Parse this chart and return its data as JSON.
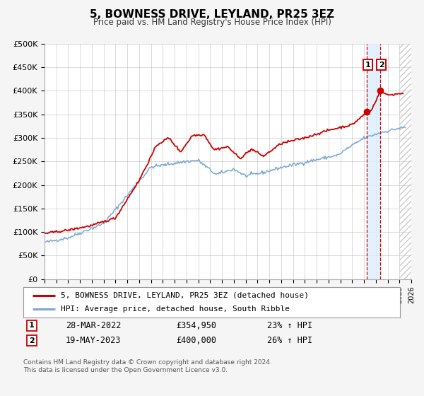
{
  "title": "5, BOWNESS DRIVE, LEYLAND, PR25 3EZ",
  "subtitle": "Price paid vs. HM Land Registry's House Price Index (HPI)",
  "legend_line1": "5, BOWNESS DRIVE, LEYLAND, PR25 3EZ (detached house)",
  "legend_line2": "HPI: Average price, detached house, South Ribble",
  "footnote1": "Contains HM Land Registry data © Crown copyright and database right 2024.",
  "footnote2": "This data is licensed under the Open Government Licence v3.0.",
  "sale1_date": "28-MAR-2022",
  "sale1_price": "£354,950",
  "sale1_hpi": "23% ↑ HPI",
  "sale1_x": 2022.24,
  "sale1_y": 354950,
  "sale2_date": "19-MAY-2023",
  "sale2_price": "£400,000",
  "sale2_hpi": "26% ↑ HPI",
  "sale2_x": 2023.38,
  "sale2_y": 400000,
  "xmin": 1995,
  "xmax": 2026,
  "ymin": 0,
  "ymax": 500000,
  "yticks": [
    0,
    50000,
    100000,
    150000,
    200000,
    250000,
    300000,
    350000,
    400000,
    450000,
    500000
  ],
  "line1_color": "#cc0000",
  "line2_color": "#7aa8d2",
  "shade_color": "#ddeeff",
  "vline_color": "#cc0000",
  "background_color": "#f5f5f5",
  "plot_bg_color": "#ffffff",
  "hatch_color": "#cccccc",
  "grid_color": "#cccccc",
  "badge_edge_color": "#cc0000"
}
